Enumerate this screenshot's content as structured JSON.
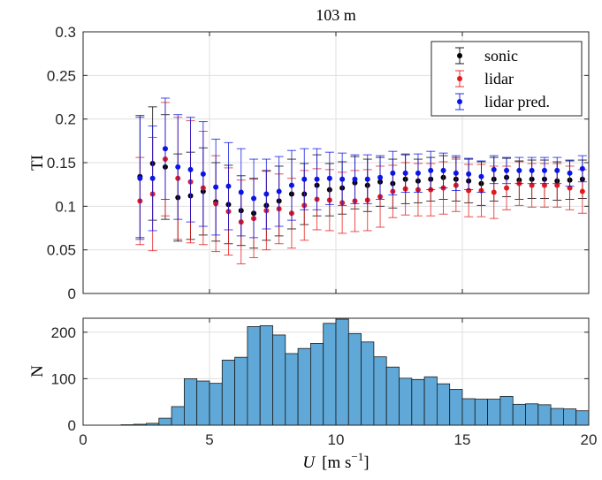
{
  "chart_data": [
    {
      "type": "scatter",
      "title": "103 m",
      "ylabel": "TI",
      "xlim": [
        0,
        20
      ],
      "ylim": [
        0,
        0.3
      ],
      "grid": true,
      "legend_position": "top-right",
      "x_ticks": [
        "0",
        "5",
        "10",
        "15",
        "20"
      ],
      "y_ticks": [
        "0",
        "0.05",
        "0.1",
        "0.15",
        "0.2",
        "0.25",
        "0.3"
      ],
      "x": [
        2.25,
        2.75,
        3.25,
        3.75,
        4.25,
        4.75,
        5.25,
        5.75,
        6.25,
        6.75,
        7.25,
        7.75,
        8.25,
        8.75,
        9.25,
        9.75,
        10.25,
        10.75,
        11.25,
        11.75,
        12.25,
        12.75,
        13.25,
        13.75,
        14.25,
        14.75,
        15.25,
        15.75,
        16.25,
        16.75,
        17.25,
        17.75,
        18.25,
        18.75,
        19.25,
        19.75
      ],
      "series": [
        {
          "name": "sonic",
          "color": "#000000",
          "values": [
            0.134,
            0.149,
            0.145,
            0.11,
            0.112,
            0.117,
            0.105,
            0.102,
            0.095,
            0.092,
            0.101,
            0.106,
            0.114,
            0.114,
            0.124,
            0.119,
            0.121,
            0.127,
            0.124,
            0.128,
            0.126,
            0.131,
            0.129,
            0.131,
            0.133,
            0.131,
            0.129,
            0.126,
            0.131,
            0.133,
            0.13,
            0.131,
            0.131,
            0.129,
            0.13,
            0.131
          ],
          "error": [
            0.07,
            0.065,
            0.06,
            0.05,
            0.05,
            0.05,
            0.045,
            0.045,
            0.04,
            0.04,
            0.04,
            0.04,
            0.04,
            0.035,
            0.035,
            0.03,
            0.03,
            0.03,
            0.03,
            0.028,
            0.028,
            0.028,
            0.025,
            0.025,
            0.025,
            0.025,
            0.025,
            0.025,
            0.025,
            0.022,
            0.022,
            0.022,
            0.022,
            0.022,
            0.022,
            0.022
          ]
        },
        {
          "name": "lidar",
          "color": "#e31a1c",
          "values": [
            0.106,
            0.114,
            0.154,
            0.132,
            0.128,
            0.121,
            0.103,
            0.094,
            0.082,
            0.086,
            0.095,
            0.097,
            0.092,
            0.101,
            0.108,
            0.107,
            0.104,
            0.106,
            0.107,
            0.111,
            0.117,
            0.12,
            0.119,
            0.119,
            0.121,
            0.124,
            0.118,
            0.118,
            0.116,
            0.121,
            0.126,
            0.124,
            0.124,
            0.124,
            0.121,
            0.117
          ],
          "error": [
            0.05,
            0.065,
            0.065,
            0.07,
            0.07,
            0.065,
            0.055,
            0.05,
            0.048,
            0.045,
            0.045,
            0.04,
            0.04,
            0.04,
            0.035,
            0.035,
            0.035,
            0.035,
            0.035,
            0.035,
            0.03,
            0.03,
            0.03,
            0.03,
            0.03,
            0.03,
            0.03,
            0.03,
            0.03,
            0.025,
            0.025,
            0.025,
            0.025,
            0.025,
            0.025,
            0.025
          ]
        },
        {
          "name": "lidar pred.",
          "color": "#0a14e6",
          "values": [
            0.132,
            0.132,
            0.166,
            0.145,
            0.142,
            0.137,
            0.122,
            0.123,
            0.116,
            0.109,
            0.114,
            0.117,
            0.124,
            0.131,
            0.131,
            0.132,
            0.131,
            0.131,
            0.131,
            0.133,
            0.138,
            0.138,
            0.138,
            0.141,
            0.141,
            0.138,
            0.137,
            0.134,
            0.142,
            0.141,
            0.141,
            0.141,
            0.141,
            0.141,
            0.138,
            0.143
          ],
          "error": [
            0.07,
            0.06,
            0.058,
            0.06,
            0.06,
            0.06,
            0.055,
            0.05,
            0.05,
            0.045,
            0.04,
            0.04,
            0.04,
            0.035,
            0.035,
            0.03,
            0.03,
            0.028,
            0.028,
            0.025,
            0.025,
            0.022,
            0.022,
            0.022,
            0.02,
            0.02,
            0.018,
            0.018,
            0.016,
            0.015,
            0.015,
            0.015,
            0.015,
            0.015,
            0.015,
            0.015
          ]
        }
      ]
    },
    {
      "type": "bar",
      "ylabel": "N",
      "xlabel_symbol": "U",
      "xlabel_units": "[m s",
      "xlabel_exp": "−1",
      "xlabel_close": "]",
      "xlim": [
        0,
        20
      ],
      "ylim": [
        0,
        230
      ],
      "grid": true,
      "color": "#5fa8d7",
      "x_ticks": [
        "0",
        "5",
        "10",
        "15",
        "20"
      ],
      "y_ticks": [
        "0",
        "100",
        "200"
      ],
      "bin_width": 0.5,
      "bin_edges_start": [
        0.0,
        0.5,
        1.0,
        1.5,
        2.0,
        2.5,
        3.0,
        3.5,
        4.0,
        4.5,
        5.0,
        5.5,
        6.0,
        6.5,
        7.0,
        7.5,
        8.0,
        8.5,
        9.0,
        9.5,
        10.0,
        10.5,
        11.0,
        11.5,
        12.0,
        12.5,
        13.0,
        13.5,
        14.0,
        14.5,
        15.0,
        15.5,
        16.0,
        16.5,
        17.0,
        17.5,
        18.0,
        18.5,
        19.0,
        19.5
      ],
      "values": [
        0,
        0,
        0,
        1,
        2,
        4,
        15,
        40,
        100,
        95,
        90,
        140,
        146,
        212,
        214,
        194,
        154,
        165,
        176,
        219,
        228,
        197,
        179,
        147,
        125,
        101,
        98,
        104,
        89,
        77,
        57,
        56,
        56,
        62,
        45,
        46,
        44,
        36,
        35,
        31
      ]
    }
  ]
}
